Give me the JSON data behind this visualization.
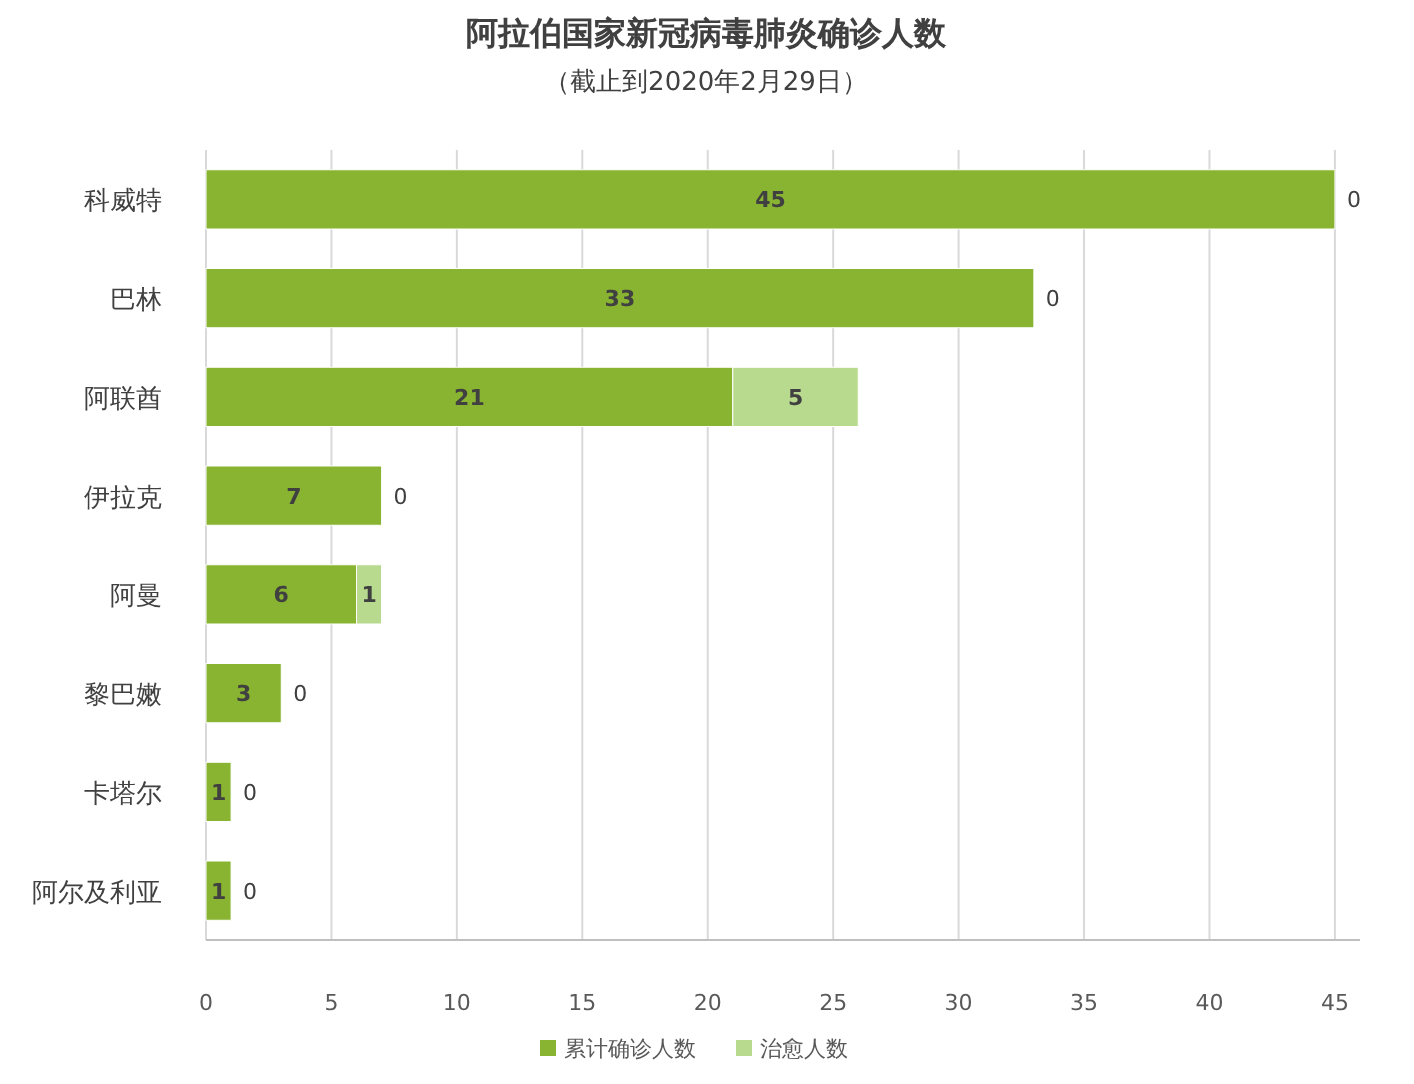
{
  "chart_data": {
    "type": "bar",
    "orientation": "horizontal",
    "stacked": true,
    "title": "阿拉伯国家新冠病毒肺炎确诊人数",
    "subtitle": "（截止到2020年2月29日）",
    "categories": [
      "科威特",
      "巴林",
      "阿联酋",
      "伊拉克",
      "阿曼",
      "黎巴嫩",
      "卡塔尔",
      "阿尔及利亚"
    ],
    "series": [
      {
        "name": "累计确诊人数",
        "color": "#88b431",
        "values": [
          45,
          33,
          21,
          7,
          6,
          3,
          1,
          1
        ]
      },
      {
        "name": "治愈人数",
        "color": "#b8da8e",
        "values": [
          0,
          0,
          5,
          0,
          1,
          0,
          0,
          0
        ]
      }
    ],
    "xlim": [
      0,
      46
    ],
    "xticks": [
      0,
      5,
      10,
      15,
      20,
      25,
      30,
      35,
      40,
      45
    ],
    "grid": "x",
    "legend": "bottom",
    "data_labels": true
  }
}
